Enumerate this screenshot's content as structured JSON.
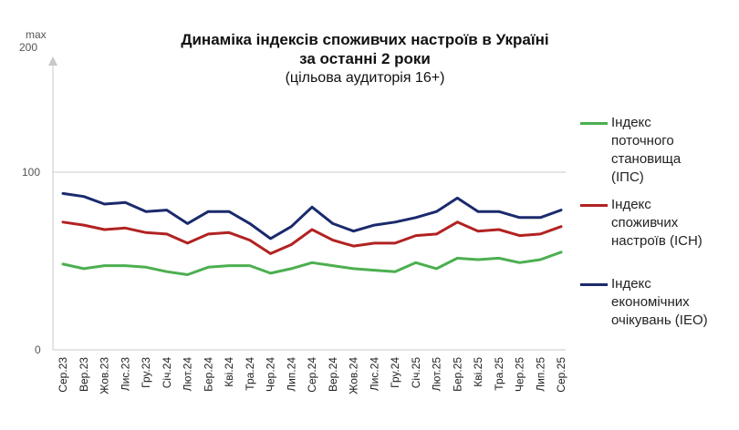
{
  "chart_data": {
    "type": "line",
    "title_lines": [
      "Динаміка індексів споживчих настроїв в Україні",
      "за останні 2 роки"
    ],
    "subtitle": "(цільова аудиторія 16+)",
    "y_axis_max_label": "max",
    "y_ticks": [
      "0",
      "100",
      "200"
    ],
    "ylim": [
      0,
      200
    ],
    "grid": "horizontal line at 100",
    "legend_position": "right",
    "categories": [
      "Сер.23",
      "Вер.23",
      "Жов.23",
      "Лис.23",
      "Гру.23",
      "Січ.24",
      "Лют.24",
      "Бер.24",
      "Кві.24",
      "Тра.24",
      "Чер.24",
      "Лип.24",
      "Сер.24",
      "Вер.24",
      "Жов.24",
      "Лис.24",
      "Гру.24",
      "Січ.25",
      "Лют.25",
      "Бер.25",
      "Кві.25",
      "Тра.25",
      "Чер.25",
      "Лип.25",
      "Сер.25"
    ],
    "series": [
      {
        "name": "Індекс поточного становища (ІПС)",
        "label_lines": [
          "Індекс",
          "поточного",
          "становища",
          "(ІПС)"
        ],
        "color": "#4caf50",
        "values": [
          57,
          54,
          56,
          56,
          55,
          52,
          50,
          55,
          56,
          56,
          51,
          54,
          58,
          56,
          54,
          53,
          52,
          58,
          54,
          61,
          60,
          61,
          58,
          60,
          65
        ]
      },
      {
        "name": "Індекс споживчих настроїв (ІСН)",
        "label_lines": [
          "Індекс",
          "споживчих",
          "настроїв (ІСН)"
        ],
        "color": "#b22222",
        "values": [
          85,
          83,
          80,
          81,
          78,
          77,
          71,
          77,
          78,
          73,
          64,
          70,
          80,
          73,
          69,
          71,
          71,
          76,
          77,
          85,
          79,
          80,
          76,
          77,
          82
        ]
      },
      {
        "name": "Індекс економічних очікувань (ІЕО)",
        "label_lines": [
          "Індекс",
          "економічних",
          "очікувань (ІЕО)"
        ],
        "color": "#1a2a6c",
        "values": [
          104,
          102,
          97,
          98,
          92,
          93,
          84,
          92,
          92,
          84,
          74,
          82,
          95,
          84,
          79,
          83,
          85,
          88,
          92,
          101,
          92,
          92,
          88,
          88,
          93
        ]
      }
    ]
  }
}
